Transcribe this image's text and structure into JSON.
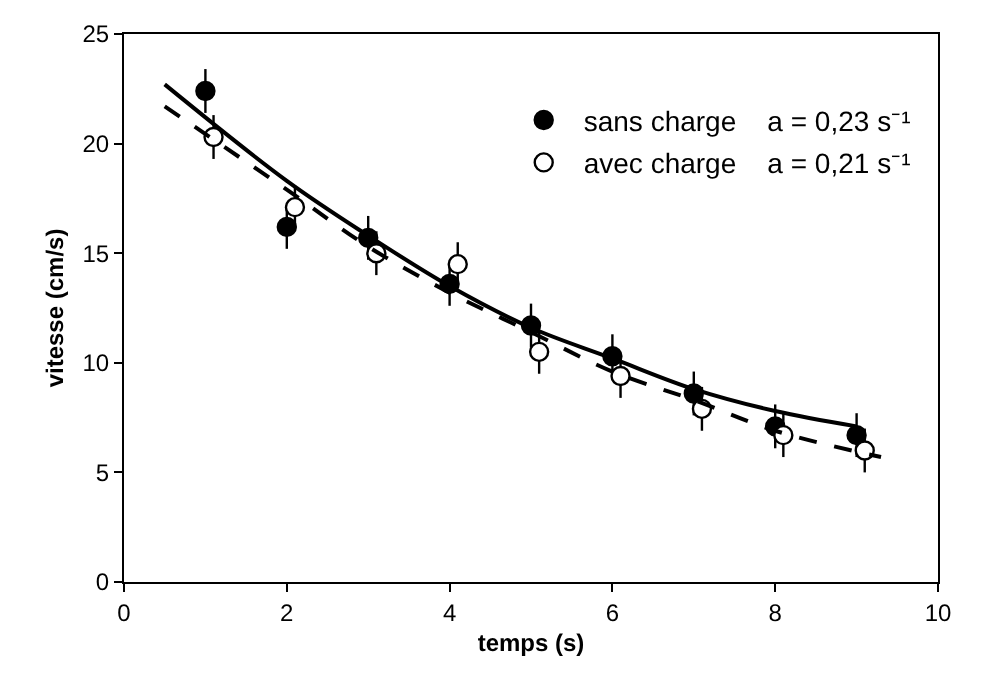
{
  "chart_data": {
    "type": "scatter",
    "xlabel": "temps (s)",
    "ylabel": "vitesse (cm/s)",
    "xlim": [
      0,
      10
    ],
    "xticks": [
      0,
      2,
      4,
      6,
      8,
      10
    ],
    "ylim": [
      0,
      25
    ],
    "yticks": [
      0,
      5,
      10,
      15,
      20,
      25
    ],
    "grid": false,
    "legend": "top right",
    "marker": "circle",
    "series": [
      {
        "name": "sans charge    a = 0,23 s⁻¹",
        "color": "#000000",
        "x": [
          1,
          2,
          3,
          4,
          5,
          6,
          7,
          8,
          9
        ],
        "values": [
          22.4,
          16.2,
          15.7,
          13.6,
          11.7,
          10.3,
          8.6,
          7.1,
          6.7
        ],
        "errors": [
          1,
          1,
          1,
          1,
          1,
          1,
          1,
          1,
          1
        ]
      },
      {
        "name": "avec charge    a = 0,21 s⁻¹",
        "color": "#ffffff",
        "x": [
          1.1,
          2.1,
          3.1,
          4.1,
          5.1,
          6.1,
          7.1,
          8.1,
          9.1
        ],
        "values": [
          20.3,
          17.1,
          15.0,
          14.5,
          10.5,
          9.4,
          7.9,
          6.7,
          6.0
        ],
        "errors": [
          1,
          1,
          1,
          1,
          1,
          1,
          1,
          1,
          1
        ]
      },
      {
        "type": "line",
        "marker": "none",
        "color": "#000000",
        "line_style": "solid",
        "x": [
          0.5,
          2,
          3,
          4,
          5,
          6,
          7,
          8,
          9
        ],
        "values": [
          22.7,
          18.3,
          15.8,
          13.5,
          11.6,
          10.2,
          8.8,
          7.8,
          7.1
        ]
      },
      {
        "type": "line",
        "marker": "none",
        "color": "#000000",
        "line_style": "dashed",
        "x": [
          0.5,
          2,
          3,
          4,
          5,
          6,
          7,
          8,
          9.3
        ],
        "values": [
          21.7,
          17.9,
          15.3,
          13.2,
          11.4,
          9.6,
          8.3,
          6.9,
          5.7
        ]
      }
    ]
  }
}
